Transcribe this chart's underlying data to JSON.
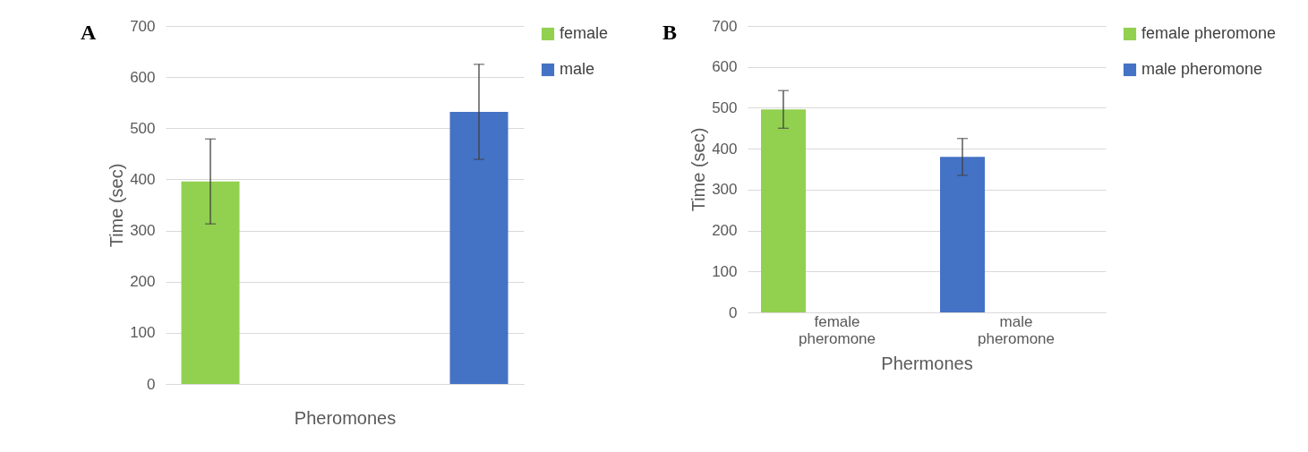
{
  "chart_data": [
    {
      "type": "bar",
      "categories": [
        null
      ],
      "xlabel": "Pheromones",
      "ylabel": "Time (sec)",
      "ylim": [
        0,
        700
      ],
      "yticks": [
        0,
        100,
        200,
        300,
        400,
        500,
        600,
        700
      ],
      "grid": "y",
      "legend": "right",
      "annotations": [
        "A"
      ],
      "series": [
        {
          "name": "female",
          "color": "#92d050",
          "values": [
            396
          ],
          "errors": [
            83
          ]
        },
        {
          "name": "male",
          "color": "#4472c4",
          "values": [
            532
          ],
          "errors": [
            93
          ]
        }
      ]
    },
    {
      "type": "bar",
      "categories": [
        "female pheromone",
        "male pheromone"
      ],
      "xlabel": "Phermones",
      "ylabel": "Time (sec)",
      "ylim": [
        0,
        700
      ],
      "yticks": [
        0,
        100,
        200,
        300,
        400,
        500,
        600,
        700
      ],
      "grid": "y",
      "legend": "right",
      "annotations": [
        "B"
      ],
      "series": [
        {
          "name": "female pheromone",
          "color": "#92d050",
          "values": [
            496,
            null
          ],
          "errors": [
            46,
            null
          ]
        },
        {
          "name": "male pheromone",
          "color": "#4472c4",
          "values": [
            null,
            380
          ],
          "errors": [
            null,
            45
          ]
        }
      ]
    }
  ]
}
